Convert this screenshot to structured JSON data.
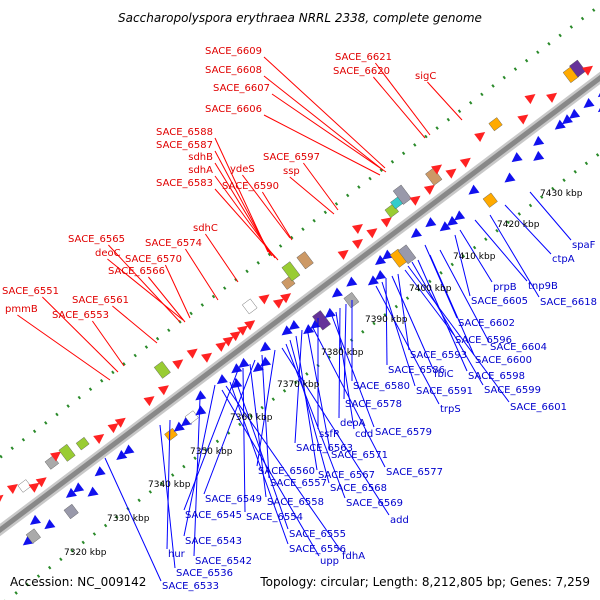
{
  "title": "Saccharopolyspora erythraea NRRL 2338, complete genome",
  "accession": "Accession: NC_009142",
  "topology": "Topology: circular; Length: 8,212,805 bp; Genes: 7,259",
  "colors": {
    "forward_label": "#e00000",
    "reverse_label": "#0000cc",
    "backbone": "#888888",
    "dots": "#2a8a2a",
    "forward_gene": "#ff2222",
    "reverse_gene": "#1111ee"
  },
  "kbp_ticks": [
    "7320 kbp",
    "7330 kbp",
    "7340 kbp",
    "7350 kbp",
    "7360 kbp",
    "7370 kbp",
    "7380 kbp",
    "7390 kbp",
    "7400 kbp",
    "7410 kbp",
    "7420 kbp",
    "7430 kbp"
  ],
  "forward_labels": [
    "SACE_6609",
    "SACE_6608",
    "SACE_6607",
    "SACE_6606",
    "SACE_6621",
    "SACE_6620",
    "sigC",
    "SACE_6588",
    "SACE_6587",
    "sdhB",
    "sdhA",
    "SACE_6583",
    "ydeS",
    "SACE_6590",
    "SACE_6597",
    "ssp",
    "sdhC",
    "SACE_6565",
    "deoC",
    "SACE_6570",
    "SACE_6566",
    "SACE_6574",
    "SACE_6551",
    "pmmB",
    "SACE_6561",
    "SACE_6553"
  ],
  "reverse_labels": [
    "spaF",
    "ctpA",
    "SACE_6618",
    "tnp9B",
    "prpB",
    "SACE_6605",
    "SACE_6602",
    "SACE_6604",
    "SACE_6600",
    "SACE_6598",
    "SACE_6599",
    "SACE_6601",
    "SACE_6596",
    "SACE_6593",
    "fbiC",
    "SACE_6586",
    "SACE_6591",
    "trpS",
    "SACE_6580",
    "SACE_6578",
    "deoA",
    "cdd",
    "SACE_6579",
    "ssfR",
    "SACE_6563",
    "SACE_6571",
    "SACE_6577",
    "SACE_6560",
    "SACE_6567",
    "SACE_6568",
    "SACE_6557",
    "SACE_6549",
    "SACE_6558",
    "SACE_6569",
    "add",
    "SACE_6545",
    "SACE_6554",
    "SACE_6543",
    "SACE_6555",
    "SACE_6556",
    "fdhA",
    "SACE_6542",
    "upp",
    "hur",
    "SACE_6536",
    "SACE_6533"
  ]
}
